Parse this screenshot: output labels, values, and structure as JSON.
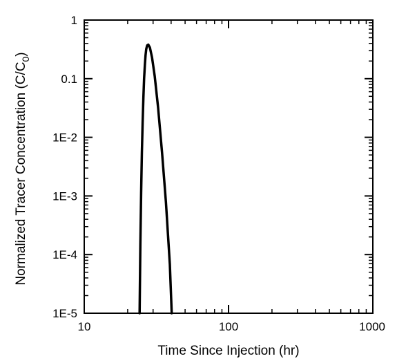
{
  "chart_data": {
    "type": "line",
    "xlabel": "Time Since Injection (hr)",
    "ylabel_main": "Normalized Tracer Concentration (C/C",
    "ylabel_sub": "0",
    "ylabel_close": ")",
    "x_scale": "log",
    "y_scale": "log",
    "xlim": [
      10,
      1000
    ],
    "ylim": [
      1e-05,
      1
    ],
    "x_ticks": [
      {
        "value": 10,
        "label": "10"
      },
      {
        "value": 100,
        "label": "100"
      },
      {
        "value": 1000,
        "label": "1000"
      }
    ],
    "y_ticks": [
      {
        "value": 1,
        "label": "1"
      },
      {
        "value": 0.1,
        "label": "0.1"
      },
      {
        "value": 0.01,
        "label": "1E-2"
      },
      {
        "value": 0.001,
        "label": "1E-3"
      },
      {
        "value": 0.0001,
        "label": "1E-4"
      },
      {
        "value": 1e-05,
        "label": "1E-5"
      }
    ],
    "grid": false,
    "series": [
      {
        "color": "#000000",
        "x": [
          24.2,
          24.5,
          24.8,
          25.1,
          25.4,
          25.7,
          26.0,
          26.3,
          26.6,
          26.9,
          27.3,
          27.8,
          28.5,
          29.5,
          30.8,
          32.5,
          34.6,
          36.8,
          39.2,
          40.4
        ],
        "y": [
          1e-05,
          0.00015,
          0.0011,
          0.0055,
          0.018,
          0.048,
          0.1,
          0.17,
          0.25,
          0.32,
          0.37,
          0.38,
          0.34,
          0.23,
          0.11,
          0.032,
          0.0055,
          0.00079,
          6.8e-05,
          1e-05
        ]
      }
    ]
  }
}
